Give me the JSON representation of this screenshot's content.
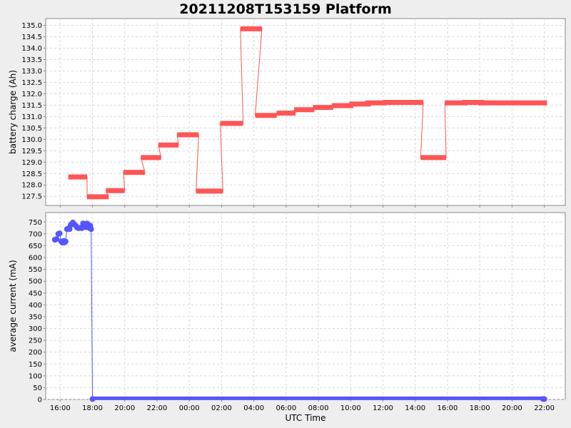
{
  "title": "20211208T153159 Platform",
  "chart_data": [
    {
      "type": "line",
      "ylabel": "battery charge (Ah)",
      "ylim": [
        127.1,
        135.3
      ],
      "yticks": [
        "127.5",
        "128.0",
        "128.5",
        "129.0",
        "129.5",
        "130.0",
        "130.5",
        "131.0",
        "131.5",
        "132.0",
        "132.5",
        "133.0",
        "133.5",
        "134.0",
        "134.5",
        "135.0"
      ],
      "xlim_hours_from_start": [
        -0.9,
        31.3
      ],
      "grid": true,
      "series": [
        {
          "color": "#ff5555",
          "segments": [
            {
              "x0": "12-08 16:30",
              "x1": "12-08 17:40",
              "y": 128.35
            },
            {
              "x0": "12-08 17:40",
              "x1": "12-08 19:00",
              "y": 127.48
            },
            {
              "x0": "12-08 18:50",
              "x1": "12-08 20:00",
              "y": 127.75
            },
            {
              "x0": "12-08 19:55",
              "x1": "12-08 21:15",
              "y": 128.55
            },
            {
              "x0": "12-08 21:00",
              "x1": "12-08 22:15",
              "y": 129.2
            },
            {
              "x0": "12-08 22:05",
              "x1": "12-08 23:20",
              "y": 129.75
            },
            {
              "x0": "12-08 23:15",
              "x1": "12-09 00:35",
              "y": 130.2
            },
            {
              "x0": "12-09 00:25",
              "x1": "12-09 02:05",
              "y": 127.73
            },
            {
              "x0": "12-09 01:55",
              "x1": "12-09 03:20",
              "y": 130.7
            },
            {
              "x0": "12-09 03:10",
              "x1": "12-09 04:30",
              "y": 134.85
            },
            {
              "x0": "12-09 04:05",
              "x1": "12-09 05:25",
              "y": 131.05
            },
            {
              "x0": "12-09 05:25",
              "x1": "12-09 06:35",
              "y": 131.15
            },
            {
              "x0": "12-09 06:30",
              "x1": "12-09 07:45",
              "y": 131.3
            },
            {
              "x0": "12-09 07:40",
              "x1": "12-09 08:55",
              "y": 131.4
            },
            {
              "x0": "12-09 08:50",
              "x1": "12-09 10:10",
              "y": 131.48
            },
            {
              "x0": "12-09 09:55",
              "x1": "12-09 11:15",
              "y": 131.55
            },
            {
              "x0": "12-09 10:55",
              "x1": "12-09 12:15",
              "y": 131.6
            },
            {
              "x0": "12-09 12:00",
              "x1": "12-09 14:30",
              "y": 131.62
            },
            {
              "x0": "12-09 14:20",
              "x1": "12-09 15:55",
              "y": 129.2
            },
            {
              "x0": "12-09 15:50",
              "x1": "12-09 17:15",
              "y": 131.6
            },
            {
              "x0": "12-09 16:55",
              "x1": "12-09 18:15",
              "y": 131.62
            },
            {
              "x0": "12-09 17:55",
              "x1": "12-09 22:10",
              "y": 131.6
            }
          ]
        }
      ]
    },
    {
      "type": "scatter",
      "ylabel": "average current (mA)",
      "xlabel": "UTC Time",
      "ylim": [
        0,
        790
      ],
      "yticks": [
        "0",
        "50",
        "100",
        "150",
        "200",
        "250",
        "300",
        "350",
        "400",
        "450",
        "500",
        "550",
        "600",
        "650",
        "700",
        "750"
      ],
      "xticks": [
        "16:00",
        "18:00",
        "20:00",
        "22:00",
        "00:00",
        "02:00",
        "04:00",
        "06:00",
        "08:00",
        "10:00",
        "12:00",
        "14:00",
        "16:00",
        "18:00",
        "20:00",
        "22:00"
      ],
      "xlim_hours_from_start": [
        -0.9,
        31.3
      ],
      "grid": true,
      "series": [
        {
          "color": "#5555ff",
          "points": [
            {
              "x": "12-08 15:40",
              "y": 675
            },
            {
              "x": "12-08 15:47",
              "y": 678
            },
            {
              "x": "12-08 15:53",
              "y": 700
            },
            {
              "x": "12-08 15:58",
              "y": 702
            },
            {
              "x": "12-08 16:04",
              "y": 668
            },
            {
              "x": "12-08 16:08",
              "y": 663
            },
            {
              "x": "12-08 16:13",
              "y": 670
            },
            {
              "x": "12-08 16:17",
              "y": 664
            },
            {
              "x": "12-08 16:20",
              "y": 668
            },
            {
              "x": "12-08 16:25",
              "y": 720
            },
            {
              "x": "12-08 16:30",
              "y": 723
            },
            {
              "x": "12-08 16:35",
              "y": 720
            },
            {
              "x": "12-08 16:39",
              "y": 738
            },
            {
              "x": "12-08 16:43",
              "y": 742
            },
            {
              "x": "12-08 16:47",
              "y": 748
            },
            {
              "x": "12-08 16:52",
              "y": 740
            },
            {
              "x": "12-08 16:58",
              "y": 735
            },
            {
              "x": "12-08 17:03",
              "y": 726
            },
            {
              "x": "12-08 17:09",
              "y": 724
            },
            {
              "x": "12-08 17:15",
              "y": 726
            },
            {
              "x": "12-08 17:20",
              "y": 724
            },
            {
              "x": "12-08 17:25",
              "y": 744
            },
            {
              "x": "12-08 17:30",
              "y": 742
            },
            {
              "x": "12-08 17:35",
              "y": 728
            },
            {
              "x": "12-08 17:40",
              "y": 744
            },
            {
              "x": "12-08 17:44",
              "y": 738
            },
            {
              "x": "12-08 17:48",
              "y": 725
            },
            {
              "x": "12-08 17:52",
              "y": 735
            },
            {
              "x": "12-08 17:55",
              "y": 720
            },
            {
              "x": "12-08 18:00",
              "y": 2
            },
            {
              "x": "12-09 21:55",
              "y": 2
            },
            {
              "x": "12-09 22:00",
              "y": 2
            }
          ]
        }
      ]
    }
  ]
}
